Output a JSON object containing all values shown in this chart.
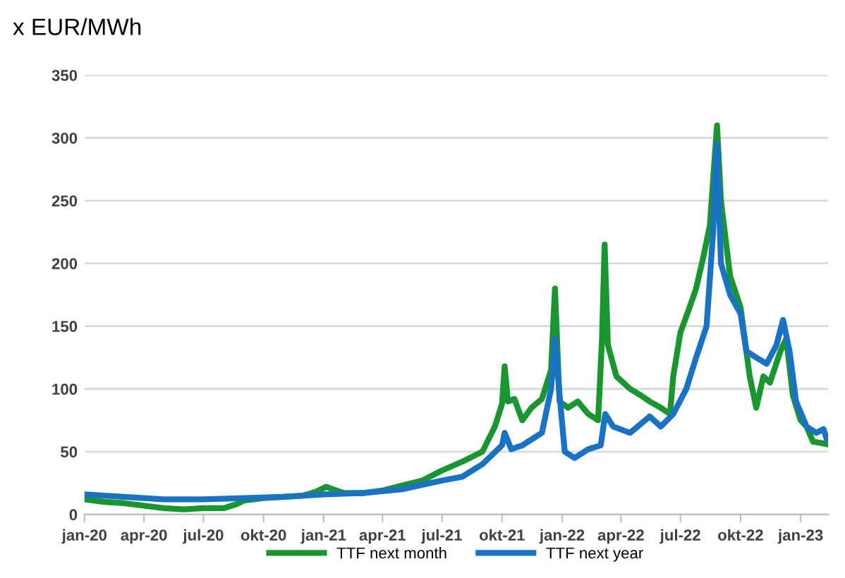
{
  "chart_data": {
    "type": "line",
    "ylabel": "x EUR/MWh",
    "xlim": [
      "2020-01-01",
      "2023-02-12"
    ],
    "ylim": [
      0,
      350
    ],
    "yticks": [
      0,
      50,
      100,
      150,
      200,
      250,
      300,
      350
    ],
    "xticks": [
      {
        "value": "2020-01-01",
        "label": "jan-20"
      },
      {
        "value": "2020-04-01",
        "label": "apr-20"
      },
      {
        "value": "2020-07-01",
        "label": "jul-20"
      },
      {
        "value": "2020-10-01",
        "label": "okt-20"
      },
      {
        "value": "2021-01-01",
        "label": "jan-21"
      },
      {
        "value": "2021-04-01",
        "label": "apr-21"
      },
      {
        "value": "2021-07-01",
        "label": "jul-21"
      },
      {
        "value": "2021-10-01",
        "label": "okt-21"
      },
      {
        "value": "2022-01-01",
        "label": "jan-22"
      },
      {
        "value": "2022-04-01",
        "label": "apr-22"
      },
      {
        "value": "2022-07-01",
        "label": "jul-22"
      },
      {
        "value": "2022-10-01",
        "label": "okt-22"
      },
      {
        "value": "2023-01-01",
        "label": "jan-23"
      }
    ],
    "grid": "y",
    "legend": "bottom",
    "line_style": "solid",
    "marker": "none",
    "series": [
      {
        "name": "TTF next month",
        "color": "#1a9631",
        "x": [
          "2020-01-01",
          "2020-02-01",
          "2020-03-01",
          "2020-04-01",
          "2020-05-01",
          "2020-06-01",
          "2020-07-01",
          "2020-08-01",
          "2020-08-20",
          "2020-09-01",
          "2020-10-01",
          "2020-11-01",
          "2020-12-01",
          "2020-12-20",
          "2021-01-05",
          "2021-01-15",
          "2021-02-01",
          "2021-03-01",
          "2021-04-01",
          "2021-05-01",
          "2021-06-01",
          "2021-07-01",
          "2021-08-01",
          "2021-09-01",
          "2021-09-20",
          "2021-10-01",
          "2021-10-05",
          "2021-10-10",
          "2021-10-20",
          "2021-11-01",
          "2021-11-15",
          "2021-12-01",
          "2021-12-15",
          "2021-12-21",
          "2021-12-28",
          "2022-01-10",
          "2022-01-25",
          "2022-02-10",
          "2022-02-25",
          "2022-03-03",
          "2022-03-07",
          "2022-03-12",
          "2022-03-25",
          "2022-04-15",
          "2022-05-01",
          "2022-05-15",
          "2022-06-01",
          "2022-06-15",
          "2022-06-20",
          "2022-07-01",
          "2022-07-15",
          "2022-07-25",
          "2022-08-05",
          "2022-08-15",
          "2022-08-26",
          "2022-09-01",
          "2022-09-15",
          "2022-10-01",
          "2022-10-15",
          "2022-10-25",
          "2022-11-05",
          "2022-11-15",
          "2022-12-01",
          "2022-12-10",
          "2022-12-20",
          "2023-01-01",
          "2023-01-10",
          "2023-01-20",
          "2023-02-01",
          "2023-02-10"
        ],
        "values": [
          12,
          10,
          9,
          7,
          5,
          4,
          5,
          5,
          8,
          11,
          13,
          14,
          15,
          18,
          22,
          20,
          17,
          17,
          19,
          23,
          27,
          35,
          42,
          50,
          70,
          88,
          118,
          90,
          92,
          75,
          85,
          92,
          115,
          180,
          90,
          85,
          90,
          80,
          75,
          140,
          215,
          135,
          110,
          100,
          95,
          90,
          85,
          80,
          110,
          145,
          165,
          180,
          205,
          230,
          310,
          250,
          190,
          165,
          110,
          85,
          110,
          105,
          130,
          140,
          95,
          75,
          70,
          58,
          57,
          56
        ]
      },
      {
        "name": "TTF next year",
        "color": "#1a72c4",
        "x": [
          "2020-01-01",
          "2020-03-01",
          "2020-05-01",
          "2020-07-01",
          "2020-09-01",
          "2020-11-01",
          "2021-01-01",
          "2021-03-01",
          "2021-05-01",
          "2021-07-01",
          "2021-08-01",
          "2021-09-01",
          "2021-10-01",
          "2021-10-05",
          "2021-10-15",
          "2021-11-01",
          "2021-12-01",
          "2021-12-15",
          "2021-12-21",
          "2021-12-28",
          "2022-01-05",
          "2022-01-20",
          "2022-02-10",
          "2022-03-01",
          "2022-03-08",
          "2022-03-20",
          "2022-04-15",
          "2022-05-15",
          "2022-06-01",
          "2022-06-20",
          "2022-07-10",
          "2022-07-25",
          "2022-08-10",
          "2022-08-20",
          "2022-08-26",
          "2022-09-01",
          "2022-09-15",
          "2022-10-01",
          "2022-10-10",
          "2022-10-25",
          "2022-11-10",
          "2022-11-25",
          "2022-12-05",
          "2022-12-15",
          "2022-12-25",
          "2023-01-10",
          "2023-01-25",
          "2023-02-05",
          "2023-02-10"
        ],
        "values": [
          16,
          14,
          12,
          12,
          13,
          14,
          16,
          17,
          20,
          27,
          30,
          40,
          55,
          65,
          52,
          55,
          65,
          100,
          140,
          95,
          50,
          45,
          52,
          55,
          80,
          70,
          65,
          78,
          70,
          80,
          100,
          125,
          150,
          225,
          295,
          200,
          175,
          160,
          130,
          125,
          120,
          135,
          155,
          130,
          90,
          70,
          65,
          68,
          60
        ]
      }
    ]
  }
}
